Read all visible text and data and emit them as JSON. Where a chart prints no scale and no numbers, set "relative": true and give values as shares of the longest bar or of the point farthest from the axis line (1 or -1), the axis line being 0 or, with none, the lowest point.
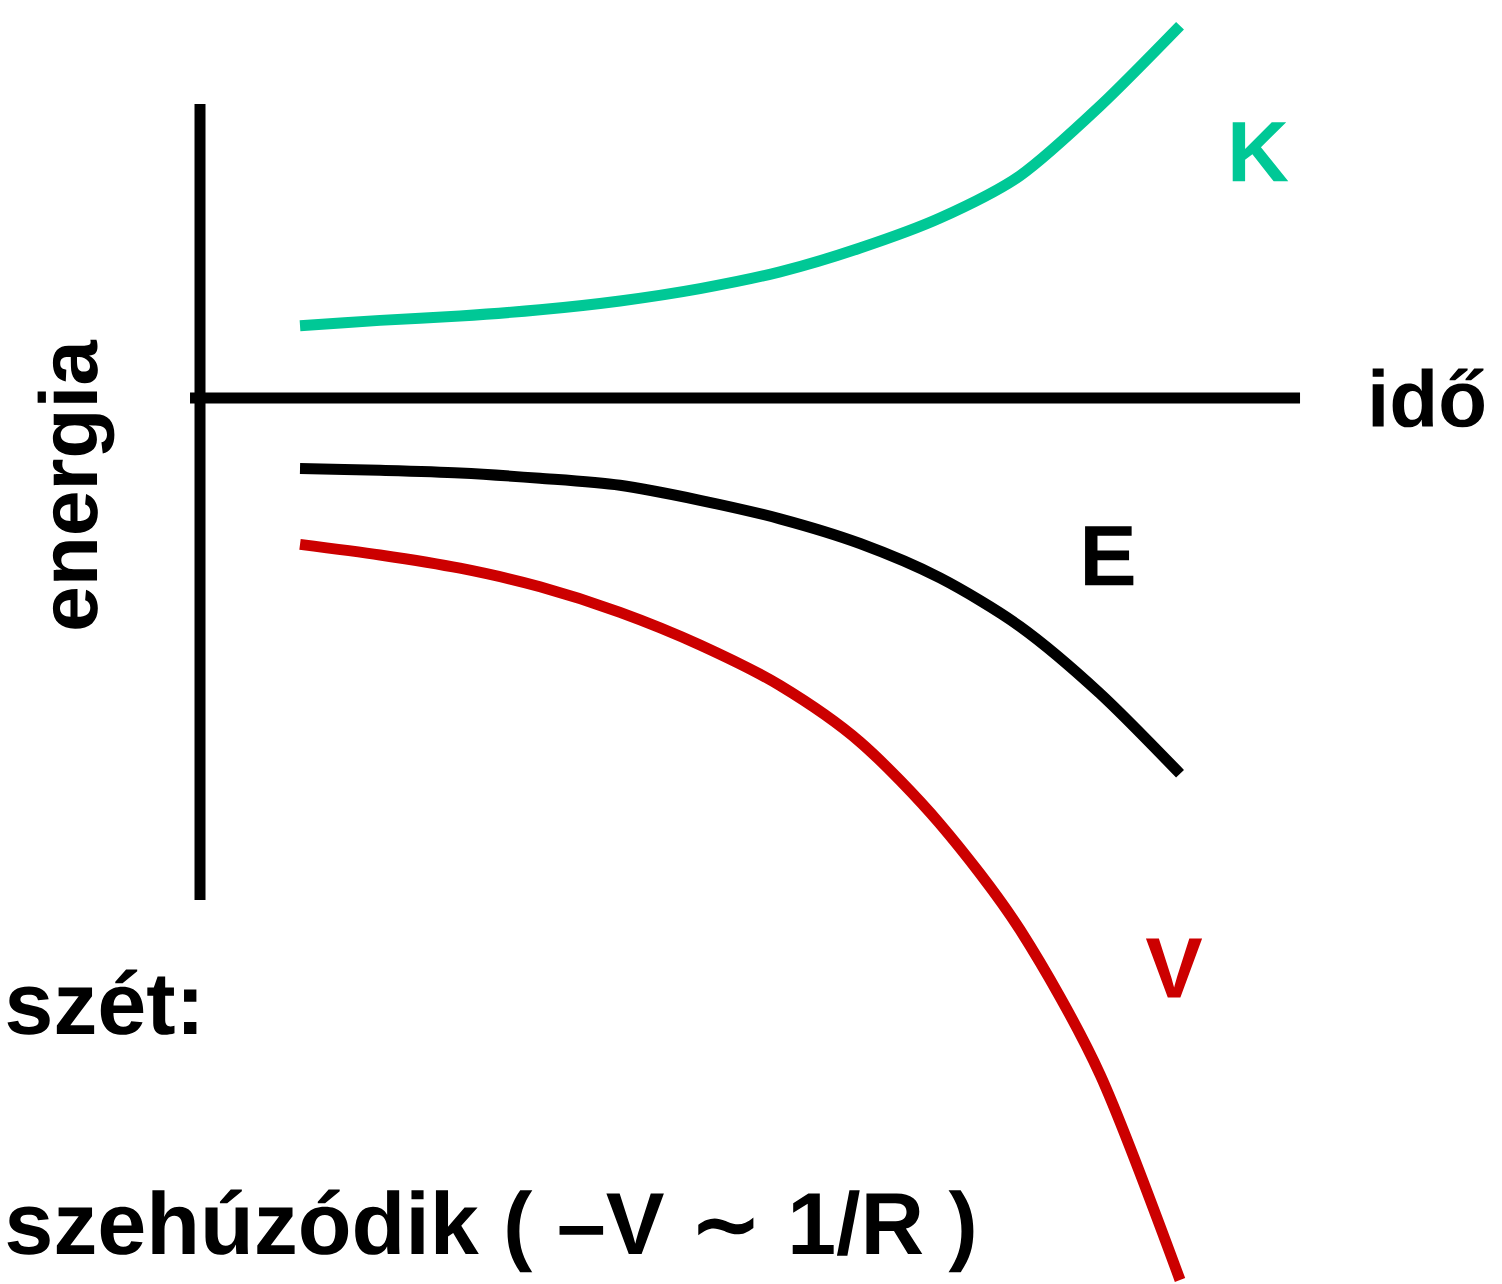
{
  "chart_data": {
    "type": "line",
    "xlabel": "idő",
    "ylabel": "energia",
    "relative": true,
    "categories": [
      null,
      null,
      null,
      null,
      null,
      null,
      null,
      null,
      null,
      null,
      null,
      null
    ],
    "series": [
      {
        "name": "K",
        "color": "#00c896",
        "values": [
          0.082,
          0.088,
          0.093,
          0.1,
          0.11,
          0.124,
          0.143,
          0.17,
          0.204,
          0.252,
          0.331,
          0.422
        ]
      },
      {
        "name": "E",
        "color": "#000000",
        "values": [
          -0.08,
          -0.082,
          -0.085,
          -0.091,
          -0.099,
          -0.116,
          -0.137,
          -0.165,
          -0.204,
          -0.259,
          -0.335,
          -0.426
        ]
      },
      {
        "name": "V",
        "color": "#cc0000",
        "values": [
          -0.166,
          -0.178,
          -0.193,
          -0.214,
          -0.243,
          -0.28,
          -0.326,
          -0.39,
          -0.483,
          -0.603,
          -0.767,
          -1
        ]
      }
    ],
    "line_style": "solid",
    "annotations": [
      "szét:",
      "szehúzódik ( –V ∼ 1/R )"
    ]
  }
}
